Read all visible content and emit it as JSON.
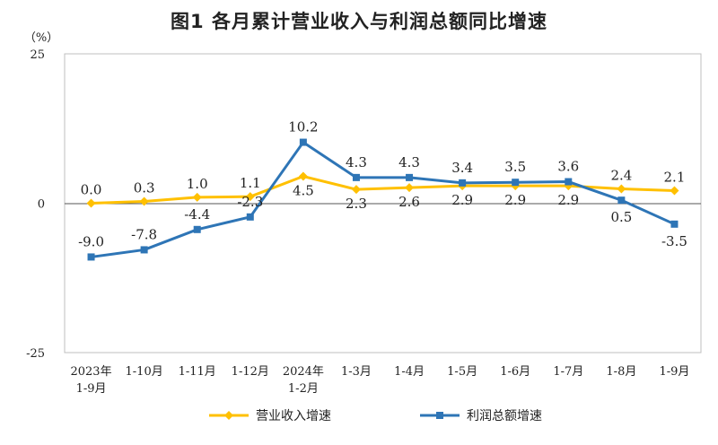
{
  "chart_data": {
    "type": "line",
    "title": "图1  各月累计营业收入与利润总额同比增速",
    "ylabel": "（%）",
    "ylim": [
      -25,
      25
    ],
    "yticks": [
      25,
      0,
      -25
    ],
    "categories": [
      [
        "2023年",
        "1-9月"
      ],
      [
        "1-10月"
      ],
      [
        "1-11月"
      ],
      [
        "1-12月"
      ],
      [
        "2024年",
        "1-2月"
      ],
      [
        "1-3月"
      ],
      [
        "1-4月"
      ],
      [
        "1-5月"
      ],
      [
        "1-6月"
      ],
      [
        "1-7月"
      ],
      [
        "1-8月"
      ],
      [
        "1-9月"
      ]
    ],
    "series": [
      {
        "name": "营业收入增速",
        "color": "#FFC000",
        "marker": "diamond",
        "values": [
          0.0,
          0.3,
          1.0,
          1.1,
          4.5,
          2.3,
          2.6,
          2.9,
          2.9,
          2.9,
          2.4,
          2.1
        ],
        "labels": [
          "0.0",
          "0.3",
          "1.0",
          "1.1",
          "4.5",
          "2.3",
          "2.6",
          "2.9",
          "2.9",
          "2.9",
          "2.4",
          "2.1"
        ]
      },
      {
        "name": "利润总额增速",
        "color": "#2E75B6",
        "marker": "square",
        "values": [
          -9.0,
          -7.8,
          -4.4,
          -2.3,
          10.2,
          4.3,
          4.3,
          3.4,
          3.5,
          3.6,
          0.5,
          -3.5
        ],
        "labels": [
          "-9.0",
          "-7.8",
          "-4.4",
          "-2.3",
          "10.2",
          "4.3",
          "4.3",
          "3.4",
          "3.5",
          "3.6",
          "0.5",
          "-3.5"
        ]
      }
    ]
  }
}
